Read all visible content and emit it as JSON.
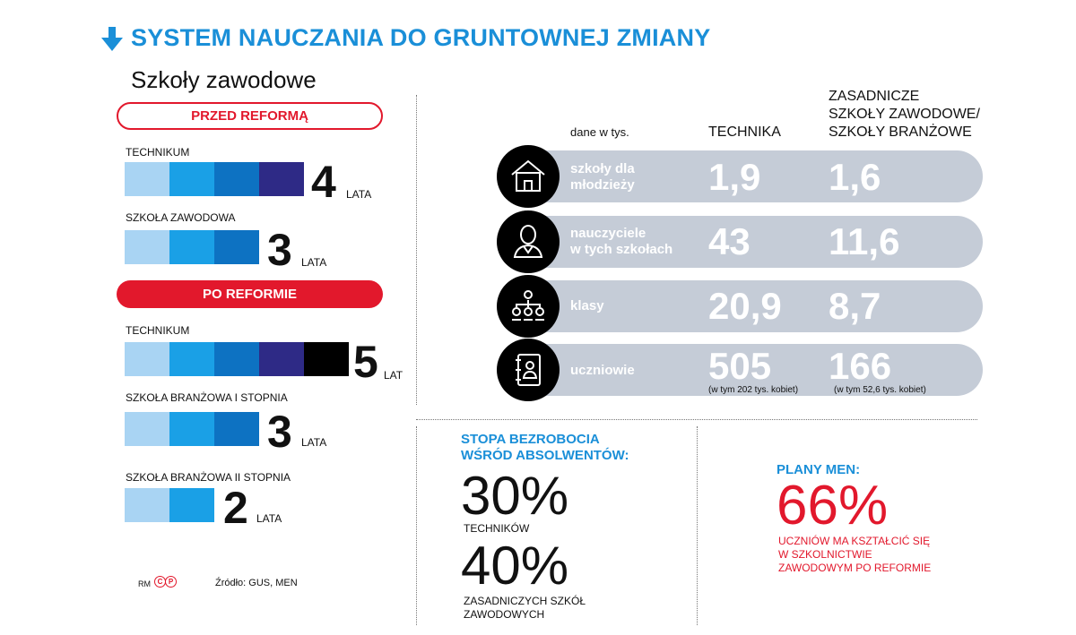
{
  "headline": "SYSTEM NAUCZANIA DO GRUNTOWNEJ ZMIANY",
  "subtitle": "Szkoły zawodowe",
  "before_label": "PRZED REFORMĄ",
  "after_label": "PO REFORMIE",
  "schools": [
    {
      "label": "TECHNIKUM",
      "number": "4",
      "unit": "LATA",
      "years": 4
    },
    {
      "label": "SZKOŁA ZAWODOWA",
      "number": "3",
      "unit": "LATA",
      "years": 3
    },
    {
      "label": "TECHNIKUM",
      "number": "5",
      "unit": "LAT",
      "years": 5
    },
    {
      "label": "SZKOŁA BRANŻOWA I STOPNIA",
      "number": "3",
      "unit": "LATA",
      "years": 3
    },
    {
      "label": "SZKOŁA BRANŻOWA II STOPNIA",
      "number": "2",
      "unit": "LATA",
      "years": 2
    }
  ],
  "segment_colors": [
    "#a9d4f3",
    "#1aa0e6",
    "#0d72c2",
    "#2e2a86",
    "#000000"
  ],
  "table": {
    "unit_note": "dane w tys.",
    "col1": "TECHNIKA",
    "col2": [
      "ZASADNICZE",
      "SZKOŁY ZAWODOWE/",
      "SZKOŁY BRANŻOWE"
    ],
    "rows": [
      {
        "icon": "house-icon",
        "label": [
          "szkoły dla",
          "młodzieży"
        ],
        "v1": "1,9",
        "v2": "1,6"
      },
      {
        "icon": "teacher-icon",
        "label": [
          "nauczyciele",
          "w tych szkołach"
        ],
        "v1": "43",
        "v2": "11,6"
      },
      {
        "icon": "hierarchy-icon",
        "label": [
          "klasy"
        ],
        "v1": "20,9",
        "v2": "8,7"
      },
      {
        "icon": "student-book-icon",
        "label": [
          "uczniowie"
        ],
        "v1": "505",
        "v2": "166",
        "n1": "(w tym 202 tys. kobiet)",
        "n2": "(w tym 52,6 tys. kobiet)"
      }
    ]
  },
  "unemployment": {
    "title": [
      "STOPA BEZROBOCIA",
      "WŚRÓD ABSOLWENTÓW:"
    ],
    "p1": "30%",
    "l1": "TECHNIKÓW",
    "p2": "40%",
    "l2": [
      "ZASADNICZYCH SZKÓŁ",
      "ZAWODOWYCH"
    ]
  },
  "plans": {
    "title": "PLANY MEN:",
    "pct": "66%",
    "text": [
      "UCZNIÓW MA KSZTAŁCIĆ SIĘ",
      "W SZKOLNICTWIE",
      "ZAWODOWYM PO REFORMIE"
    ]
  },
  "footer": {
    "author": "RM",
    "source": "Źródło: GUS, MEN"
  }
}
